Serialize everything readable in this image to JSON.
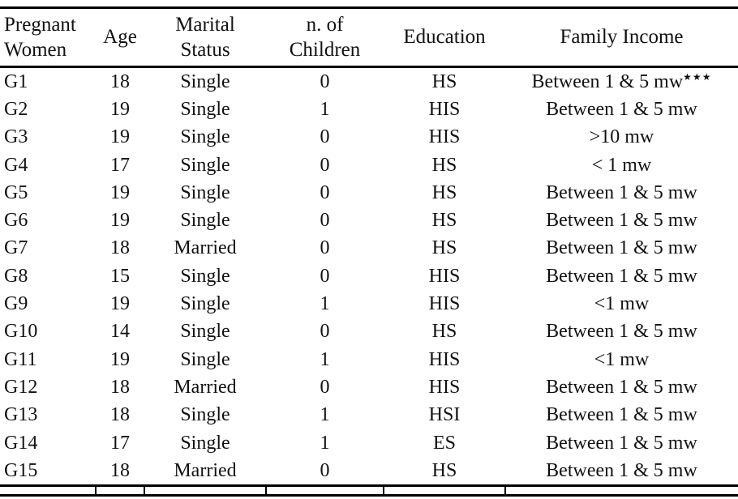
{
  "page": {
    "background": "#ffffff",
    "text_color": "#111111",
    "rule_color": "#000000"
  },
  "table": {
    "columns": [
      {
        "id": "pregnant-women",
        "label": "Pregnant\nWomen"
      },
      {
        "id": "age",
        "label": "Age"
      },
      {
        "id": "marital-status",
        "label": "Marital\nStatus"
      },
      {
        "id": "n-of-children",
        "label": "n. of\nChildren"
      },
      {
        "id": "education",
        "label": "Education"
      },
      {
        "id": "family-income",
        "label": "Family Income"
      }
    ],
    "rows": [
      {
        "id": "G1",
        "age": "18",
        "marital_status": "Single",
        "children": "0",
        "education": "HS",
        "income": "Between 1 & 5 mw",
        "income_note": "★★★"
      },
      {
        "id": "G2",
        "age": "19",
        "marital_status": "Single",
        "children": "1",
        "education": "HIS",
        "income": "Between 1 & 5 mw",
        "income_note": ""
      },
      {
        "id": "G3",
        "age": "19",
        "marital_status": "Single",
        "children": "0",
        "education": "HIS",
        "income": ">10 mw",
        "income_note": ""
      },
      {
        "id": "G4",
        "age": "17",
        "marital_status": "Single",
        "children": "0",
        "education": "HS",
        "income": "< 1 mw",
        "income_note": ""
      },
      {
        "id": "G5",
        "age": "19",
        "marital_status": "Single",
        "children": "0",
        "education": "HS",
        "income": "Between 1 & 5 mw",
        "income_note": ""
      },
      {
        "id": "G6",
        "age": "19",
        "marital_status": "Single",
        "children": "0",
        "education": "HS",
        "income": "Between 1 & 5 mw",
        "income_note": ""
      },
      {
        "id": "G7",
        "age": "18",
        "marital_status": "Married",
        "children": "0",
        "education": "HS",
        "income": "Between 1 & 5 mw",
        "income_note": ""
      },
      {
        "id": "G8",
        "age": "15",
        "marital_status": "Single",
        "children": "0",
        "education": "HIS",
        "income": "Between 1 & 5 mw",
        "income_note": ""
      },
      {
        "id": "G9",
        "age": "19",
        "marital_status": "Single",
        "children": "1",
        "education": "HIS",
        "income": "<1 mw",
        "income_note": ""
      },
      {
        "id": "G10",
        "age": "14",
        "marital_status": "Single",
        "children": "0",
        "education": "HS",
        "income": "Between 1 & 5 mw",
        "income_note": ""
      },
      {
        "id": "G11",
        "age": "19",
        "marital_status": "Single",
        "children": "1",
        "education": "HIS",
        "income": "<1 mw",
        "income_note": ""
      },
      {
        "id": "G12",
        "age": "18",
        "marital_status": "Married",
        "children": "0",
        "education": "HIS",
        "income": "Between 1 & 5 mw",
        "income_note": ""
      },
      {
        "id": "G13",
        "age": "18",
        "marital_status": "Single",
        "children": "1",
        "education": "HSI",
        "income": "Between 1 & 5 mw",
        "income_note": ""
      },
      {
        "id": "G14",
        "age": "17",
        "marital_status": "Single",
        "children": "1",
        "education": "ES",
        "income": "Between 1 & 5 mw",
        "income_note": ""
      },
      {
        "id": "G15",
        "age": "18",
        "marital_status": "Married",
        "children": "0",
        "education": "HS",
        "income": "Between 1 & 5 mw",
        "income_note": ""
      }
    ]
  }
}
